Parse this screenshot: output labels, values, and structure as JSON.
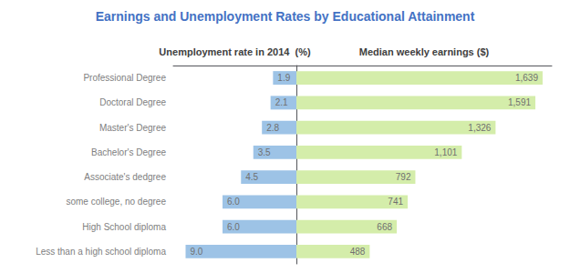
{
  "chart_data": [
    {
      "type": "bar",
      "orientation": "horizontal",
      "title": "Earnings and Unemployment Rates by Educational Attainment",
      "xlabel": "Unemployment rate in 2014  (%)",
      "categories": [
        "Less than a high school diploma",
        "High School diploma",
        "some college, no degree",
        "Associate's dedgree",
        "Bachelor's Degree",
        "Master's Degree",
        "Doctoral Degree",
        "Professional Degree"
      ],
      "values": [
        9.0,
        6.0,
        6.0,
        4.5,
        3.5,
        2.8,
        2.1,
        1.9
      ],
      "value_labels": [
        "9.0",
        "6.0",
        "6.0",
        "4.5",
        "3.5",
        "2.8",
        "2.1",
        "1.9"
      ],
      "color": "#9DC3E6",
      "xlim": [
        10,
        0
      ],
      "grid": false,
      "data_labels": true,
      "tick_labels": "y"
    },
    {
      "type": "bar",
      "orientation": "horizontal",
      "xlabel": "Median weekly earnings ($)",
      "categories": [
        "Less than a high school diploma",
        "High School diploma",
        "some college, no degree",
        "Associate's dedgree",
        "Bachelor's Degree",
        "Master's Degree",
        "Doctoral Degree",
        "Professional Degree"
      ],
      "values": [
        488,
        668,
        741,
        792,
        1101,
        1326,
        1591,
        1639
      ],
      "value_labels": [
        "488",
        "668",
        "741",
        "792",
        "1,101",
        "1,326",
        "1,591",
        "1,639"
      ],
      "color": "#D4EDAA",
      "xlim": [
        0,
        1700
      ],
      "grid": false,
      "data_labels": true,
      "tick_labels": false
    }
  ]
}
